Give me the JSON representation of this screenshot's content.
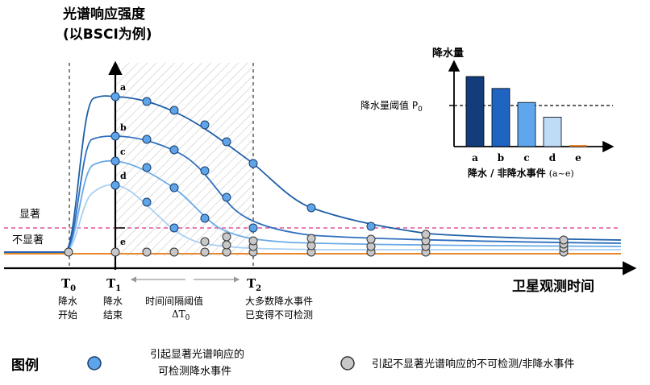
{
  "title": {
    "line1": "光谱响应强度",
    "line2": "(以BSCI为例)"
  },
  "xaxis_title": "卫星观测时间",
  "threshold_labels": {
    "significant": "显著",
    "not_significant": "不显著"
  },
  "curve_labels": [
    "a",
    "b",
    "c",
    "d",
    "e"
  ],
  "time_ticks": [
    {
      "name": "T",
      "sub": "0",
      "desc": [
        "降水",
        "开始"
      ]
    },
    {
      "name": "T",
      "sub": "1",
      "desc": [
        "降水",
        "结束"
      ]
    },
    {
      "name": "T",
      "sub": "2",
      "desc": [
        "大多数降水事件",
        "已变得不可检测"
      ]
    }
  ],
  "interval": {
    "line1": "时间间隔阈值",
    "line2_main": "ΔT",
    "line2_sub": "0"
  },
  "inset": {
    "title": "降水量",
    "threshold_label_main": "降水量阈值 P",
    "threshold_label_sub": "0",
    "xlabel": "降水 / 非降水事件",
    "xlabel_range": "(a~e)",
    "categories": [
      "a",
      "b",
      "c",
      "d",
      "e"
    ],
    "values": [
      1.0,
      0.83,
      0.63,
      0.42,
      0.02
    ],
    "threshold": 0.63
  },
  "legend": {
    "title": "图例",
    "item1": {
      "line1": "引起显著光谱响应的",
      "line2": "可检测降水事件"
    },
    "item2": "引起不显著光谱响应的不可检测/非降水事件"
  },
  "colors": {
    "curve_a": "#1f5fa8",
    "curve_b": "#2f6fbf",
    "curve_c": "#6aaae6",
    "curve_d": "#a9d0f2",
    "curve_e": "#e8872e",
    "dot_detect": "#5da4e8",
    "dot_undetect": "#c8c8c8",
    "sig_line": "#e0559a",
    "bar_a": "#123c7c",
    "bar_b": "#1f64c0",
    "bar_c": "#5fa6ee",
    "bar_d": "#bfdcf7",
    "bar_e": "#e8872e"
  }
}
